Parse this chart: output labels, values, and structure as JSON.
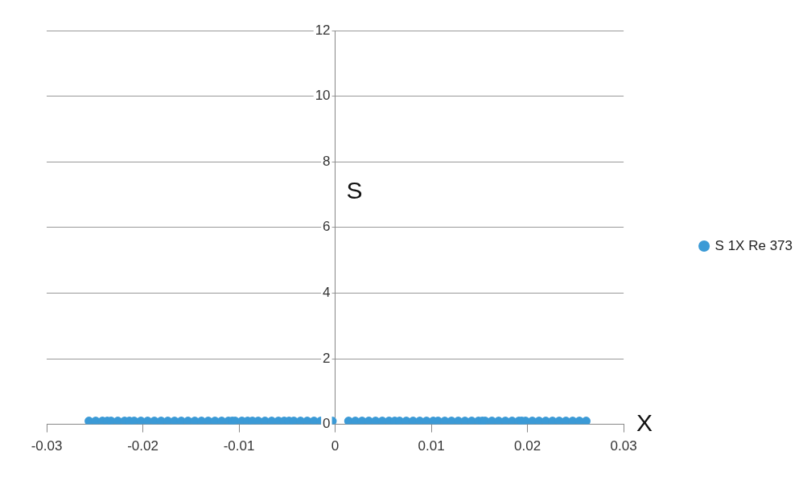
{
  "chart_data": {
    "type": "scatter",
    "xlabel": "X",
    "ylabel": "S",
    "xlim": [
      -0.03,
      0.03
    ],
    "xticks": [
      -0.03,
      -0.02,
      -0.01,
      0,
      0.01,
      0.02,
      0.03
    ],
    "ylim": [
      0,
      12
    ],
    "yticks": [
      0,
      2,
      4,
      6,
      8,
      10,
      12
    ],
    "grid": "y",
    "legend": "right",
    "marker": "circle",
    "series": [
      {
        "name": "S 1X Re 373",
        "color": "#3b9ad6",
        "x": [
          -0.0256,
          -0.0249,
          -0.0242,
          -0.0237,
          -0.0233,
          -0.0226,
          -0.0219,
          -0.0214,
          -0.0209,
          -0.0202,
          -0.0195,
          -0.0188,
          -0.0181,
          -0.0174,
          -0.0167,
          -0.016,
          -0.0153,
          -0.0146,
          -0.0139,
          -0.0132,
          -0.0125,
          -0.0118,
          -0.0111,
          -0.0107,
          -0.0104,
          -0.0097,
          -0.0091,
          -0.0086,
          -0.008,
          -0.0073,
          -0.0066,
          -0.0059,
          -0.0053,
          -0.0048,
          -0.0043,
          -0.0036,
          -0.0029,
          -0.0022,
          -0.0015,
          -0.0003,
          0.0014,
          0.0021,
          0.0028,
          0.0035,
          0.0042,
          0.0049,
          0.0056,
          0.0062,
          0.0067,
          0.0074,
          0.0081,
          0.0088,
          0.0095,
          0.0102,
          0.0107,
          0.0114,
          0.0121,
          0.0128,
          0.0135,
          0.0142,
          0.0149,
          0.0153,
          0.0156,
          0.0163,
          0.017,
          0.0177,
          0.0184,
          0.0191,
          0.0194,
          0.0198,
          0.0205,
          0.0212,
          0.0219,
          0.0226,
          0.0233,
          0.024,
          0.0247,
          0.0254,
          0.0261
        ],
        "values": [
          0.1,
          0.1,
          0.1,
          0.1,
          0.1,
          0.1,
          0.1,
          0.1,
          0.1,
          0.1,
          0.1,
          0.1,
          0.1,
          0.1,
          0.1,
          0.1,
          0.1,
          0.1,
          0.1,
          0.1,
          0.1,
          0.1,
          0.1,
          0.1,
          0.1,
          0.1,
          0.1,
          0.1,
          0.1,
          0.1,
          0.1,
          0.1,
          0.1,
          0.1,
          0.1,
          0.1,
          0.1,
          0.1,
          0.1,
          0.1,
          0.1,
          0.1,
          0.1,
          0.1,
          0.1,
          0.1,
          0.1,
          0.1,
          0.1,
          0.1,
          0.1,
          0.1,
          0.1,
          0.1,
          0.1,
          0.1,
          0.1,
          0.1,
          0.1,
          0.1,
          0.1,
          0.1,
          0.1,
          0.1,
          0.1,
          0.1,
          0.1,
          0.1,
          0.1,
          0.1,
          0.1,
          0.1,
          0.1,
          0.1,
          0.1,
          0.1,
          0.1,
          0.1,
          0.1
        ]
      }
    ]
  }
}
